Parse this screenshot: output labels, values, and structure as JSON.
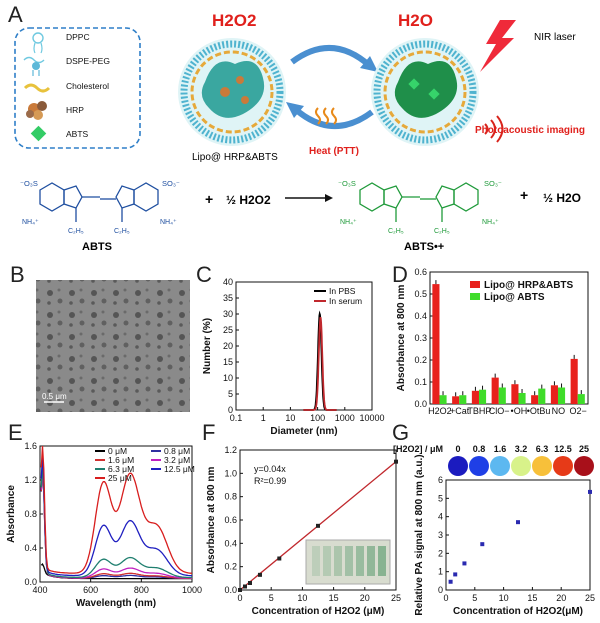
{
  "panel_a": {
    "label": "A",
    "legend": [
      "DPPC",
      "DSPE-PEG",
      "Cholesterol",
      "HRP",
      "ABTS"
    ],
    "h2o2": "H2O2",
    "h2o": "H2O",
    "lipo_label": "Lipo@ HRP&ABTS",
    "heat_label": "Heat (PTT)",
    "nir_label": "NIR laser",
    "pa_label": "Photoacoustic imaging",
    "reaction": {
      "abts_name": "ABTS",
      "abts_radical_name": "ABTS•+",
      "plus1": "+",
      "half_h2o2": "½ H2O2",
      "plus2": "+",
      "half_h2o": "½ H2O"
    }
  },
  "panel_b": {
    "label": "B",
    "scale_bar": "0.5 μm"
  },
  "panels": {
    "c": "C",
    "d": "D",
    "e": "E",
    "f": "F",
    "g": "G"
  },
  "chart_data": [
    {
      "id": "C",
      "type": "line",
      "xlabel": "Diameter (nm)",
      "ylabel": "Number (%)",
      "xscale": "log",
      "xlim": [
        0.1,
        10000
      ],
      "ylim": [
        0,
        40
      ],
      "xticks": [
        "0.1",
        "1",
        "10",
        "100",
        "1000",
        "10000"
      ],
      "yticks": [
        0,
        5,
        10,
        15,
        20,
        25,
        30,
        35,
        40
      ],
      "legend": "top-right",
      "series": [
        {
          "name": "In PBS",
          "color": "#000000",
          "center": 120,
          "peak": 30
        },
        {
          "name": "In serum",
          "color": "#c0282d",
          "center": 128,
          "peak": 29
        }
      ]
    },
    {
      "id": "D",
      "type": "bar",
      "ylabel": "Absorbance at 800 nm",
      "ylim": [
        0,
        0.6
      ],
      "yticks": [
        "0.0",
        "0.1",
        "0.2",
        "0.3",
        "0.4",
        "0.5",
        "0.6"
      ],
      "categories": [
        "H2O2",
        "+Cat",
        "TBHP",
        "ClO−",
        "•OH",
        "•OtBu",
        "NO",
        "O2−"
      ],
      "legend": "top-right",
      "series": [
        {
          "name": "Lipo@ HRP&ABTS",
          "color": "#e8211c",
          "values": [
            0.545,
            0.035,
            0.06,
            0.12,
            0.09,
            0.04,
            0.085,
            0.205
          ]
        },
        {
          "name": "Lipo@ ABTS",
          "color": "#3fdc2a",
          "values": [
            0.04,
            0.04,
            0.065,
            0.075,
            0.05,
            0.07,
            0.075,
            0.045
          ]
        }
      ]
    },
    {
      "id": "E",
      "type": "line",
      "xlabel": "Wavelength (nm)",
      "ylabel": "Absorbance",
      "xlim": [
        400,
        1000
      ],
      "ylim": [
        0,
        1.6
      ],
      "xticks": [
        400,
        600,
        800,
        1000
      ],
      "yticks": [
        "0.0",
        "0.4",
        "0.8",
        "1.2",
        "1.6"
      ],
      "legend": "top-right",
      "series": [
        {
          "name": "0 μM",
          "color": "#000000",
          "scale": 0.0
        },
        {
          "name": "0.8 μM",
          "color": "#2f2fa0",
          "scale": 0.03
        },
        {
          "name": "1.6 μM",
          "color": "#d03030",
          "scale": 0.05
        },
        {
          "name": "3.2 μM",
          "color": "#c020c0",
          "scale": 0.1
        },
        {
          "name": "6.3 μM",
          "color": "#1f7f6f",
          "scale": 0.2
        },
        {
          "name": "12.5 μM",
          "color": "#2020c0",
          "scale": 0.55
        },
        {
          "name": "25 μM",
          "color": "#d81e1e",
          "scale": 1.0
        }
      ]
    },
    {
      "id": "F",
      "type": "scatter",
      "xlabel": "Concentration of H2O2 (μM)",
      "ylabel": "Absorbance at 800 nm",
      "xlim": [
        0,
        25
      ],
      "ylim": [
        0,
        1.2
      ],
      "xticks": [
        0,
        5,
        10,
        15,
        20,
        25
      ],
      "yticks": [
        "0.0",
        "0.2",
        "0.4",
        "0.6",
        "0.8",
        "1.0",
        "1.2"
      ],
      "equation": "y=0.04x",
      "r2": "R²=0.99",
      "x": [
        0,
        0.8,
        1.6,
        3.2,
        6.3,
        12.5,
        25
      ],
      "values": [
        0.0,
        0.03,
        0.06,
        0.13,
        0.27,
        0.55,
        1.1
      ]
    },
    {
      "id": "G",
      "type": "scatter",
      "xlabel": "Concentration of H2O2(μM)",
      "ylabel": "Relative PA signal at 800 nm (a.u.)",
      "xlim": [
        0,
        25
      ],
      "ylim": [
        0,
        6
      ],
      "xticks": [
        0,
        5,
        10,
        15,
        20,
        25
      ],
      "yticks": [
        0,
        1,
        2,
        3,
        4,
        5,
        6
      ],
      "header": "[H2O2] / μM",
      "pa_levels": [
        "0",
        "0.8",
        "1.6",
        "3.2",
        "6.3",
        "12.5",
        "25"
      ],
      "pa_colors": [
        "#1b1bbf",
        "#1f3fe6",
        "#5db8f0",
        "#d8f28a",
        "#f7c03a",
        "#e63a18",
        "#a8101a"
      ],
      "x": [
        0.8,
        1.6,
        3.2,
        6.3,
        12.5,
        25
      ],
      "values": [
        0.45,
        0.85,
        1.45,
        2.5,
        3.7,
        5.35
      ]
    }
  ]
}
